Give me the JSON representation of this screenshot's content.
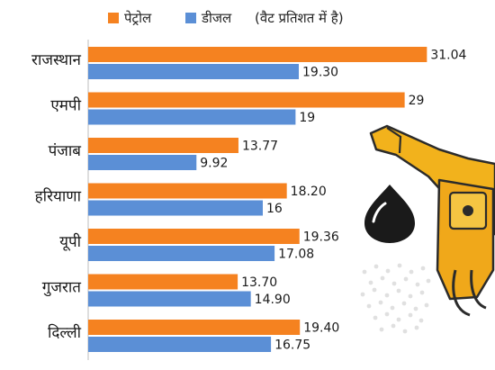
{
  "legend": {
    "petrol": "पेट्रोल",
    "diesel": "डीजल",
    "note": "(वैट प्रतिशत में है)"
  },
  "colors": {
    "petrol": "#f58220",
    "diesel": "#5b8fd6",
    "background": "#ffffff",
    "label_bg": "#ffffff"
  },
  "chart_data": {
    "type": "bar",
    "orientation": "horizontal",
    "categories": [
      "राजस्थान",
      "एमपी",
      "पंजाब",
      "हरियाणा",
      "यूपी",
      "गुजरात",
      "दिल्ली"
    ],
    "series": [
      {
        "name": "पेट्रोल",
        "values": [
          31.04,
          29,
          13.77,
          18.2,
          19.36,
          13.7,
          19.4
        ],
        "labels": [
          "31.04",
          "29",
          "13.77",
          "18.20",
          "19.36",
          "13.70",
          "19.40"
        ]
      },
      {
        "name": "डीजल",
        "values": [
          19.3,
          19,
          9.92,
          16,
          17.08,
          14.9,
          16.75
        ],
        "labels": [
          "19.30",
          "19",
          "9.92",
          "16",
          "17.08",
          "14.90",
          "16.75"
        ]
      }
    ],
    "xlim": [
      0,
      32
    ],
    "grid": false,
    "legend_position": "top"
  }
}
